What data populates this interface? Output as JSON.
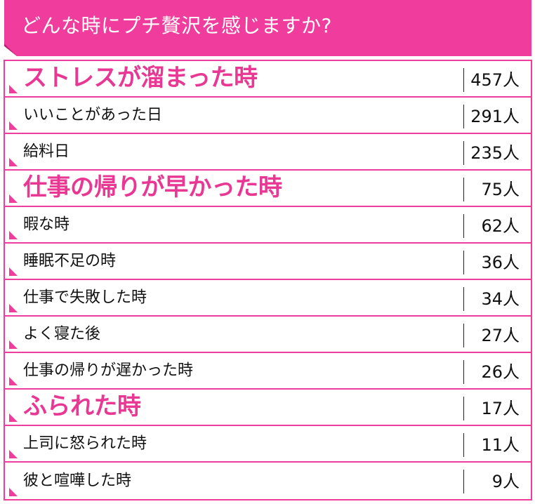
{
  "header": {
    "title": "どんな時にプチ贅沢を感じますか?"
  },
  "colors": {
    "accent": "#f03c9c",
    "accent_dark": "#b81f72",
    "text_dark": "#111111",
    "emphasis": "#e83893"
  },
  "chart_data": {
    "type": "table",
    "title": "どんな時にプチ贅沢を感じますか?",
    "columns": [
      "",
      ""
    ],
    "rows": [
      {
        "label": "ストレスが溜まった時",
        "value": 457,
        "display_value": "457人",
        "highlight": true
      },
      {
        "label": "いいことがあった日",
        "value": 291,
        "display_value": "291人",
        "highlight": false
      },
      {
        "label": "給料日",
        "value": 235,
        "display_value": "235人",
        "highlight": false
      },
      {
        "label": "仕事の帰りが早かった時",
        "value": 75,
        "display_value": "75人",
        "highlight": true
      },
      {
        "label": "暇な時",
        "value": 62,
        "display_value": "62人",
        "highlight": false
      },
      {
        "label": "睡眠不足の時",
        "value": 36,
        "display_value": "36人",
        "highlight": false
      },
      {
        "label": "仕事で失敗した時",
        "value": 34,
        "display_value": "34人",
        "highlight": false
      },
      {
        "label": "よく寝た後",
        "value": 27,
        "display_value": "27人",
        "highlight": false
      },
      {
        "label": "仕事の帰りが遅かった時",
        "value": 26,
        "display_value": "26人",
        "highlight": false
      },
      {
        "label": "ふられた時",
        "value": 17,
        "display_value": "17人",
        "highlight": true
      },
      {
        "label": "上司に怒られた時",
        "value": 11,
        "display_value": "11人",
        "highlight": false
      },
      {
        "label": "彼と喧嘩した時",
        "value": 9,
        "display_value": "9人",
        "highlight": false
      }
    ]
  }
}
